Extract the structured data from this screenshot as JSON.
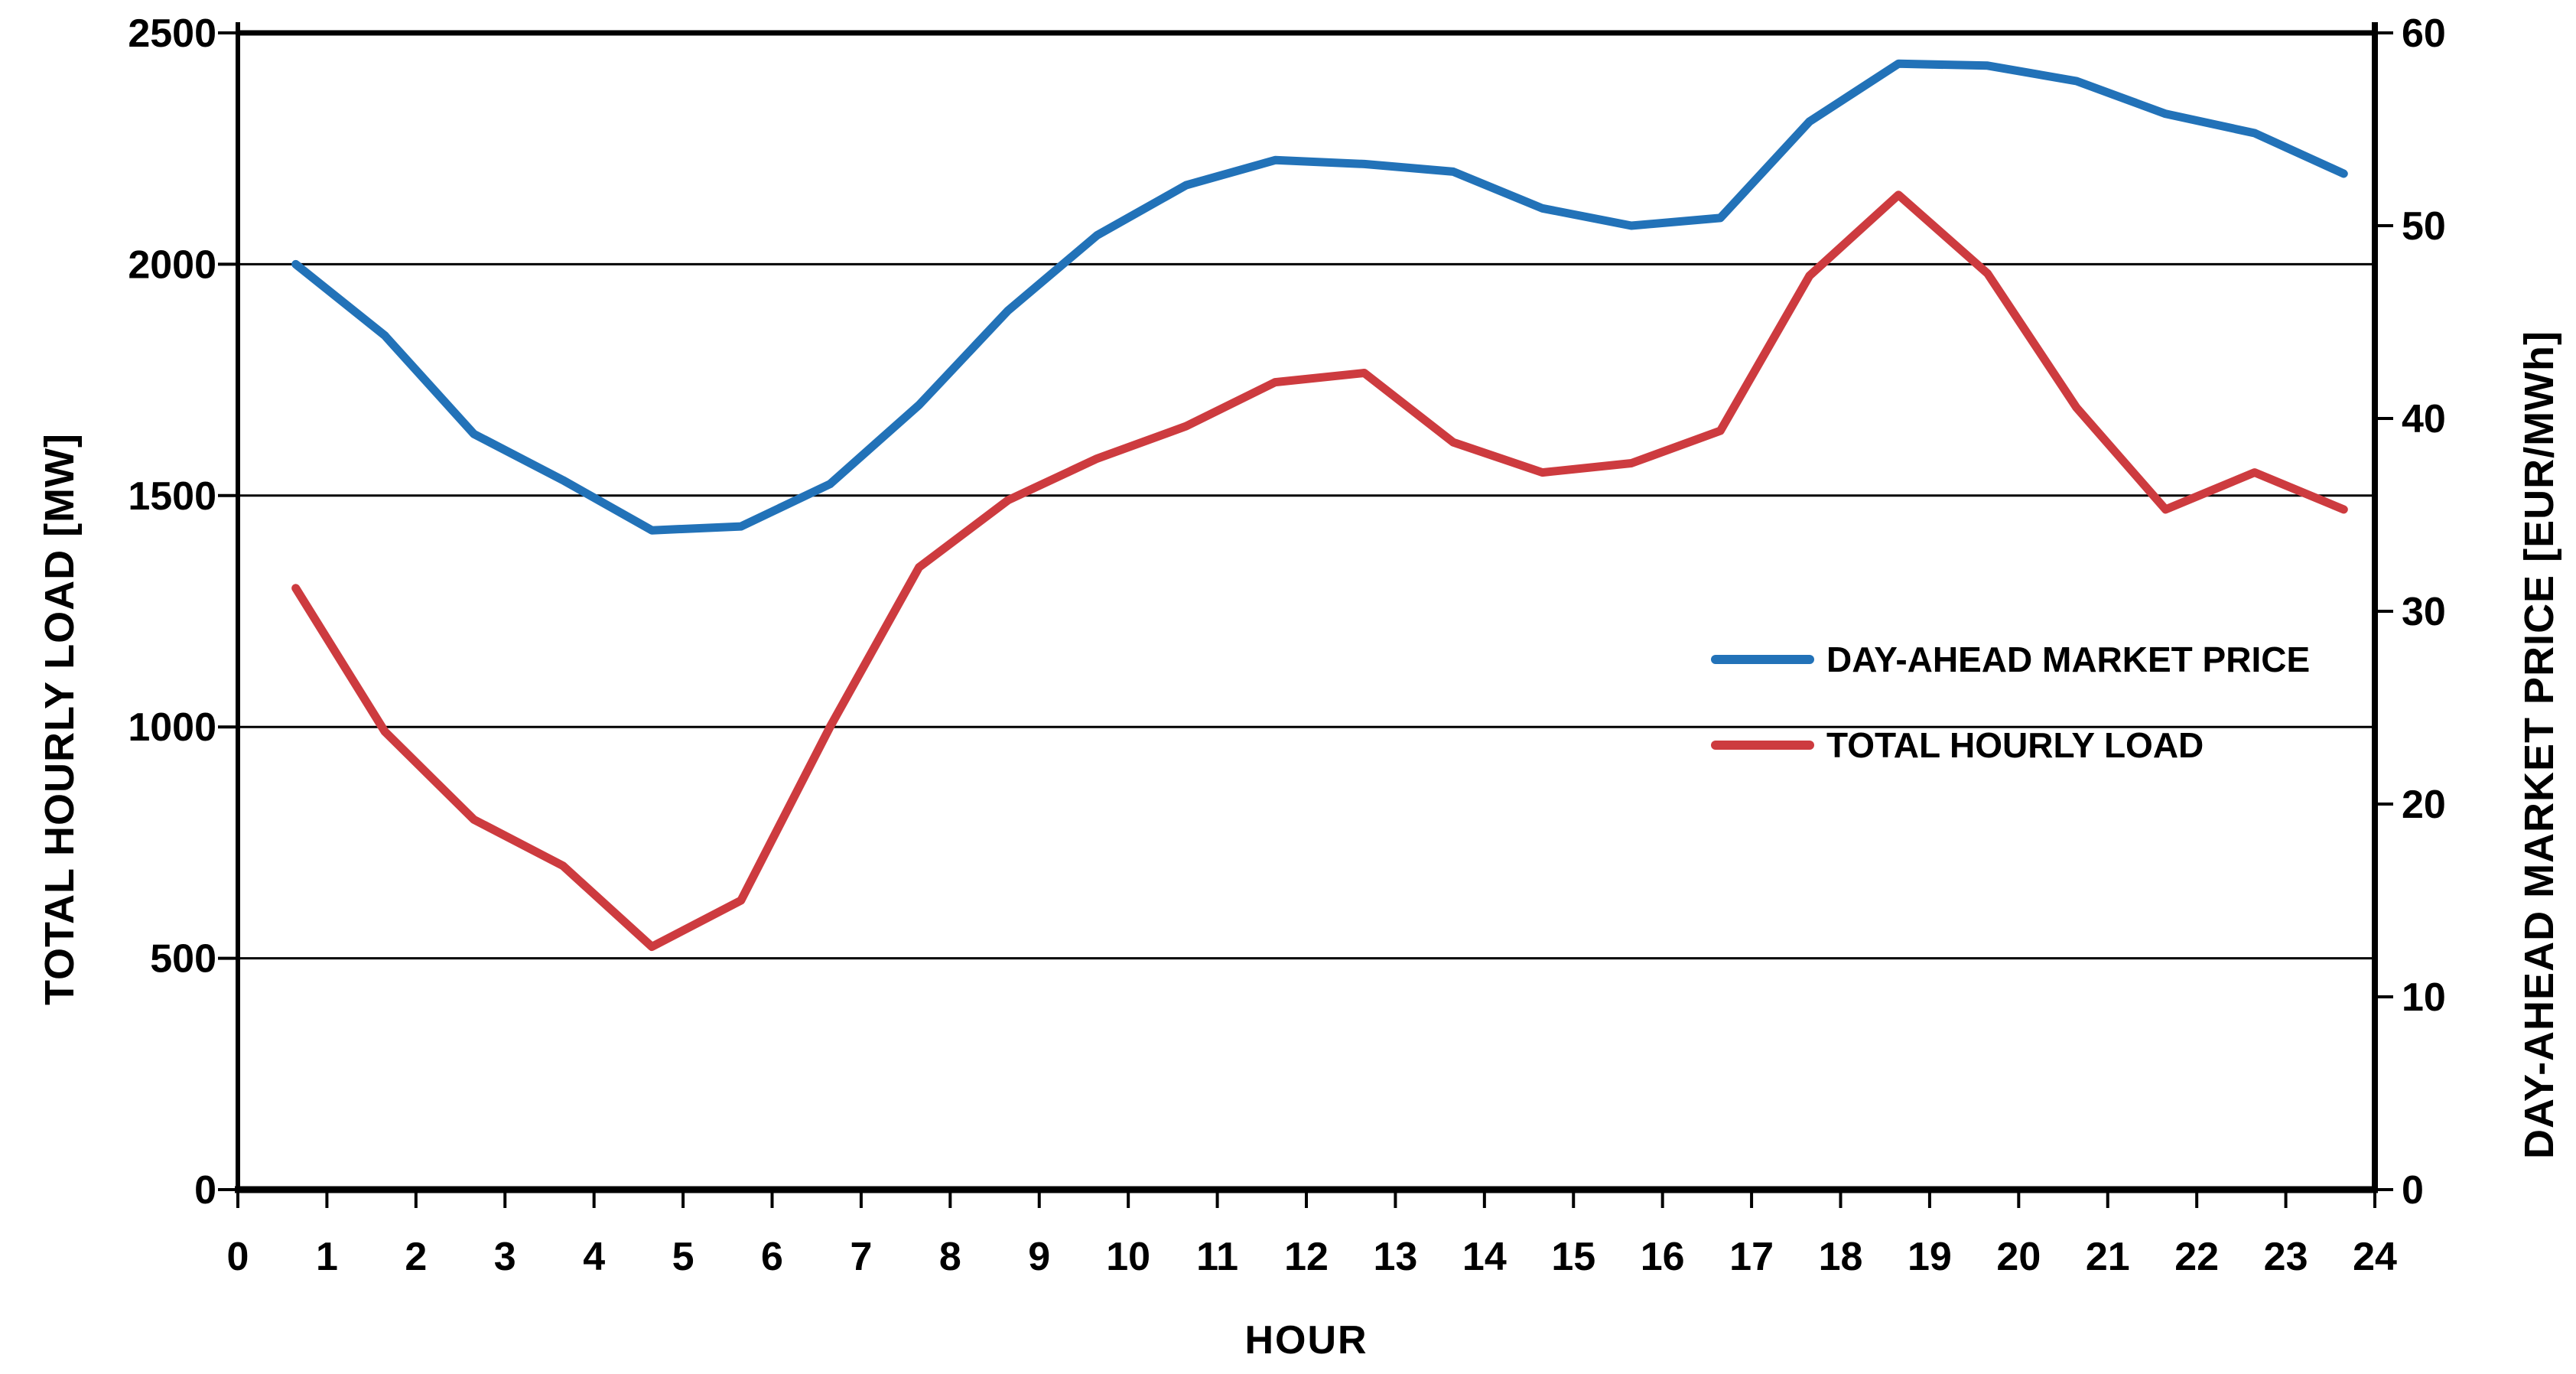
{
  "chart_data": {
    "type": "line",
    "title": "",
    "xlabel": "HOUR",
    "x_ticks": [
      0,
      1,
      2,
      3,
      4,
      5,
      6,
      7,
      8,
      9,
      10,
      11,
      12,
      13,
      14,
      15,
      16,
      17,
      18,
      19,
      20,
      21,
      22,
      23,
      24
    ],
    "x_range": [
      0,
      24
    ],
    "y_left_axis": {
      "label": "TOTAL HOURLY LOAD [MW]",
      "ticks": [
        0,
        500,
        1000,
        1500,
        2000,
        2500
      ],
      "range": [
        0,
        2500
      ],
      "gridlines": [
        500,
        1000,
        1500,
        2000
      ]
    },
    "y_right_axis": {
      "label": "DAY-AHEAD MARKET PRICE [EUR/MWh]",
      "ticks": [
        0,
        10,
        20,
        30,
        40,
        50,
        60
      ],
      "range": [
        0,
        60
      ]
    },
    "hours": [
      1,
      2,
      3,
      4,
      5,
      6,
      7,
      8,
      9,
      10,
      11,
      12,
      13,
      14,
      15,
      16,
      17,
      18,
      19,
      20,
      21,
      22,
      23,
      24
    ],
    "series": [
      {
        "name": "DAY-AHEAD MARKET PRICE",
        "axis": "right",
        "unit": "EUR/MWh",
        "color": "#2272B8",
        "values": [
          48.0,
          44.3,
          39.2,
          36.8,
          34.2,
          34.4,
          36.6,
          40.7,
          45.6,
          49.5,
          52.1,
          53.4,
          53.2,
          52.8,
          50.9,
          50.0,
          50.4,
          55.4,
          58.4,
          58.3,
          57.5,
          55.8,
          54.8,
          52.7
        ]
      },
      {
        "name": "TOTAL HOURLY LOAD",
        "axis": "left",
        "unit": "MW",
        "color": "#CD3B3F",
        "values": [
          1300,
          990,
          800,
          700,
          525,
          625,
          1000,
          1345,
          1490,
          1580,
          1650,
          1745,
          1765,
          1615,
          1550,
          1570,
          1640,
          1975,
          2150,
          1980,
          1690,
          1470,
          1550,
          1470
        ]
      }
    ],
    "legend_position": "inside-right",
    "grid": true,
    "colors": {
      "axis": "#000000",
      "gridline": "#000000",
      "background": "#ffffff"
    }
  }
}
